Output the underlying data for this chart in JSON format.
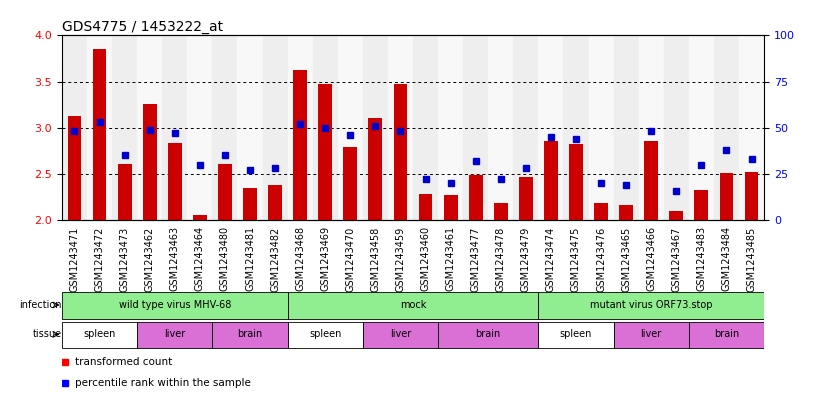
{
  "title": "GDS4775 / 1453222_at",
  "samples": [
    "GSM1243471",
    "GSM1243472",
    "GSM1243473",
    "GSM1243462",
    "GSM1243463",
    "GSM1243464",
    "GSM1243480",
    "GSM1243481",
    "GSM1243482",
    "GSM1243468",
    "GSM1243469",
    "GSM1243470",
    "GSM1243458",
    "GSM1243459",
    "GSM1243460",
    "GSM1243461",
    "GSM1243477",
    "GSM1243478",
    "GSM1243479",
    "GSM1243474",
    "GSM1243475",
    "GSM1243476",
    "GSM1243465",
    "GSM1243466",
    "GSM1243467",
    "GSM1243483",
    "GSM1243484",
    "GSM1243485"
  ],
  "bar_values": [
    3.13,
    3.85,
    2.61,
    3.26,
    2.84,
    2.05,
    2.61,
    2.35,
    2.38,
    3.62,
    3.47,
    2.79,
    3.1,
    3.47,
    2.28,
    2.27,
    2.49,
    2.19,
    2.47,
    2.86,
    2.82,
    2.19,
    2.16,
    2.86,
    2.1,
    2.33,
    2.51,
    2.52
  ],
  "percentile_values": [
    48,
    53,
    35,
    49,
    47,
    30,
    35,
    27,
    28,
    52,
    50,
    46,
    51,
    48,
    22,
    20,
    32,
    22,
    28,
    45,
    44,
    20,
    19,
    48,
    16,
    30,
    38,
    33
  ],
  "ylim_left": [
    2.0,
    4.0
  ],
  "ylim_right": [
    0,
    100
  ],
  "bar_color": "#cc0000",
  "dot_color": "#0000cc",
  "infection_groups": [
    {
      "label": "wild type virus MHV-68",
      "start": 0,
      "end": 9
    },
    {
      "label": "mock",
      "start": 9,
      "end": 19
    },
    {
      "label": "mutant virus ORF73.stop",
      "start": 19,
      "end": 28
    }
  ],
  "tissue_groups": [
    {
      "label": "spleen",
      "start": 0,
      "end": 3,
      "color": "#ffffff"
    },
    {
      "label": "liver",
      "start": 3,
      "end": 6,
      "color": "#da70d6"
    },
    {
      "label": "brain",
      "start": 6,
      "end": 9,
      "color": "#da70d6"
    },
    {
      "label": "spleen",
      "start": 9,
      "end": 12,
      "color": "#ffffff"
    },
    {
      "label": "liver",
      "start": 12,
      "end": 15,
      "color": "#da70d6"
    },
    {
      "label": "brain",
      "start": 15,
      "end": 19,
      "color": "#da70d6"
    },
    {
      "label": "spleen",
      "start": 19,
      "end": 22,
      "color": "#ffffff"
    },
    {
      "label": "liver",
      "start": 22,
      "end": 25,
      "color": "#da70d6"
    },
    {
      "label": "brain",
      "start": 25,
      "end": 28,
      "color": "#da70d6"
    }
  ],
  "tick_label_fontsize": 7,
  "title_fontsize": 10,
  "infection_color": "#90ee90",
  "spleen_color": "#ffffff",
  "tissue_purple": "#da70d6"
}
